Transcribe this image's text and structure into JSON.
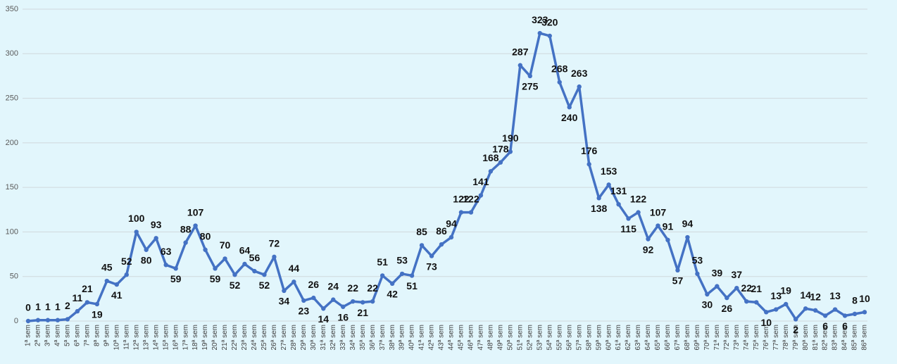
{
  "chart_data": {
    "type": "line",
    "categories": [
      "1ª sem",
      "2ª sem",
      "3ª sem",
      "4ª sem",
      "5ª sem",
      "6ª sem",
      "7ª sem",
      "8ª sem",
      "9ª sem",
      "10ª sem",
      "11ª sem",
      "12ª sem",
      "13ª sem",
      "14ª sem",
      "15ª sem",
      "16ª sem",
      "17ª sem",
      "18ª sem",
      "19ª sem",
      "20ª sem",
      "21ª sem",
      "22ª sem",
      "23ª sem",
      "24ª sem",
      "25ª sem",
      "26ª sem",
      "27ª sem",
      "28ª sem",
      "29ª sem",
      "30ª sem",
      "31ª sem",
      "32ª sem",
      "33ª sem",
      "34ª sem",
      "35ª sem",
      "36ª sem",
      "37ª sem",
      "38ª sem",
      "39ª sem",
      "40ª sem",
      "41ª sem",
      "42ª sem",
      "43ª sem",
      "44ª sem",
      "45ª sem",
      "46ª sem",
      "47ª sem",
      "48ª sem",
      "49ª sem",
      "50ª sem",
      "51ª sem",
      "52ª sem",
      "53ª sem",
      "54ª sem",
      "55ª sem",
      "56ª sem",
      "57ª sem",
      "58ª sem",
      "59ª sem",
      "60ª sem",
      "61ª sem",
      "62ª sem",
      "63ª sem",
      "64ª sem",
      "65ª sem",
      "66ª sem",
      "67ª sem",
      "68ª sem",
      "69ª sem",
      "70ª sem",
      "71ª sem",
      "72ª sem",
      "73ª sem",
      "74ª sem",
      "75ª sem",
      "76ª sem",
      "77ª sem",
      "78ª sem",
      "79ª sem",
      "80ª sem",
      "81ª sem",
      "82ª sem",
      "83ª sem",
      "84ª sem",
      "85ª sem",
      "86ª sem"
    ],
    "values": [
      0,
      1,
      1,
      1,
      2,
      11,
      21,
      19,
      45,
      41,
      52,
      100,
      80,
      93,
      63,
      59,
      88,
      107,
      80,
      59,
      70,
      52,
      64,
      56,
      52,
      72,
      34,
      44,
      23,
      26,
      14,
      24,
      16,
      22,
      21,
      22,
      51,
      42,
      53,
      51,
      85,
      73,
      86,
      94,
      122,
      122,
      141,
      168,
      178,
      190,
      287,
      275,
      323,
      320,
      268,
      240,
      263,
      176,
      138,
      153,
      131,
      115,
      122,
      92,
      107,
      91,
      57,
      94,
      53,
      30,
      39,
      26,
      37,
      22,
      21,
      10,
      13,
      19,
      2,
      14,
      12,
      6,
      13,
      6,
      8,
      10
    ],
    "color": "#4472c4",
    "ylim": [
      0,
      350
    ],
    "yticks": [
      0,
      50,
      100,
      150,
      200,
      250,
      300,
      350
    ],
    "grid": true
  }
}
